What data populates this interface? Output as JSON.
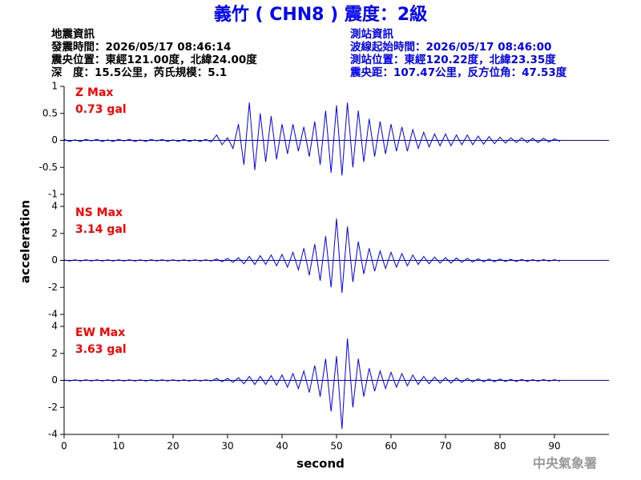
{
  "chart_data": {
    "type": "line",
    "title": "義竹 ( CHN8 ) 震度：2級",
    "header_left": [
      "地震資訊",
      "發震時間：2026/05/17 08:46:14",
      "震央位置：東經121.00度，北緯24.00度",
      "深　度：15.5公里，芮氏規模：5.1"
    ],
    "header_right": [
      "測站資訊",
      "波線起始時間：2026/05/17 08:46:00",
      "測站位置：東經120.22度，北緯23.35度",
      "震央距：107.47公里，反方位角：47.53度"
    ],
    "xlabel": "second",
    "ylabel": "acceleration",
    "credit": "中央氣象署",
    "xlim": [
      0,
      100
    ],
    "xticks": [
      0,
      10,
      20,
      30,
      40,
      50,
      60,
      70,
      80,
      90
    ],
    "x": [
      0,
      1,
      2,
      3,
      4,
      5,
      6,
      7,
      8,
      9,
      10,
      11,
      12,
      13,
      14,
      15,
      16,
      17,
      18,
      19,
      20,
      21,
      22,
      23,
      24,
      25,
      26,
      27,
      28,
      29,
      30,
      31,
      32,
      33,
      34,
      35,
      36,
      37,
      38,
      39,
      40,
      41,
      42,
      43,
      44,
      45,
      46,
      47,
      48,
      49,
      50,
      51,
      52,
      53,
      54,
      55,
      56,
      57,
      58,
      59,
      60,
      61,
      62,
      63,
      64,
      65,
      66,
      67,
      68,
      69,
      70,
      71,
      72,
      73,
      74,
      75,
      76,
      77,
      78,
      79,
      80,
      81,
      82,
      83,
      84,
      85,
      86,
      87,
      88,
      89,
      90,
      91
    ],
    "panels": [
      {
        "name": "Z Max",
        "max_label": "0.73 gal",
        "color": "#0000ff",
        "ylim": [
          -1,
          1
        ],
        "yticks": [
          -1,
          -0.5,
          0,
          0.5,
          1
        ],
        "values": [
          0.02,
          -0.02,
          0.01,
          -0.02,
          0.02,
          -0.01,
          0.02,
          -0.02,
          0.01,
          -0.02,
          0.02,
          -0.01,
          0.02,
          -0.02,
          0.01,
          -0.02,
          0.02,
          -0.01,
          0.02,
          -0.02,
          0.01,
          -0.02,
          0.02,
          -0.02,
          0.01,
          -0.02,
          0.02,
          -0.03,
          0.1,
          -0.08,
          0.05,
          -0.15,
          0.3,
          -0.45,
          0.7,
          -0.55,
          0.5,
          -0.4,
          0.45,
          -0.35,
          0.3,
          -0.25,
          0.3,
          -0.2,
          0.25,
          -0.3,
          0.35,
          -0.45,
          0.55,
          -0.6,
          0.65,
          -0.65,
          0.7,
          -0.5,
          0.55,
          -0.4,
          0.4,
          -0.3,
          0.35,
          -0.25,
          0.3,
          -0.2,
          0.25,
          -0.2,
          0.2,
          -0.15,
          0.15,
          -0.12,
          0.12,
          -0.1,
          0.12,
          -0.1,
          0.1,
          -0.08,
          0.1,
          -0.08,
          0.08,
          -0.07,
          0.07,
          -0.06,
          0.06,
          -0.05,
          0.05,
          -0.04,
          0.05,
          -0.04,
          0.04,
          -0.04,
          0.04,
          -0.03,
          0.03,
          -0.02
        ]
      },
      {
        "name": "NS Max",
        "max_label": "3.14 gal",
        "color": "#0000ff",
        "ylim": [
          -4,
          4
        ],
        "yticks": [
          -4,
          -2,
          0,
          2,
          4
        ],
        "values": [
          0.04,
          -0.04,
          0.04,
          -0.04,
          0.04,
          -0.04,
          0.04,
          -0.04,
          0.04,
          -0.04,
          0.04,
          -0.04,
          0.04,
          -0.04,
          0.04,
          -0.04,
          0.04,
          -0.04,
          0.04,
          -0.04,
          0.04,
          -0.04,
          0.04,
          -0.04,
          0.04,
          -0.04,
          0.04,
          -0.04,
          0.1,
          -0.1,
          0.15,
          -0.15,
          0.2,
          -0.25,
          0.3,
          -0.3,
          0.35,
          -0.3,
          0.4,
          -0.4,
          0.45,
          -0.5,
          0.6,
          -0.7,
          0.9,
          -1.1,
          1.2,
          -1.5,
          1.8,
          -2.0,
          3.1,
          -2.4,
          2.5,
          -1.6,
          1.4,
          -1.0,
          0.9,
          -0.8,
          0.7,
          -0.6,
          0.6,
          -0.5,
          0.5,
          -0.4,
          0.4,
          -0.3,
          0.3,
          -0.25,
          0.25,
          -0.2,
          0.2,
          -0.2,
          0.18,
          -0.15,
          0.15,
          -0.12,
          0.12,
          -0.1,
          0.1,
          -0.1,
          0.1,
          -0.08,
          0.08,
          -0.08,
          0.07,
          -0.07,
          0.06,
          -0.06,
          0.06,
          -0.05,
          0.05,
          -0.05
        ]
      },
      {
        "name": "EW Max",
        "max_label": "3.63 gal",
        "color": "#0000ff",
        "ylim": [
          -4,
          4
        ],
        "yticks": [
          -4,
          -2,
          0,
          2,
          4
        ],
        "values": [
          0.04,
          -0.04,
          0.04,
          -0.04,
          0.04,
          -0.04,
          0.04,
          -0.04,
          0.04,
          -0.04,
          0.04,
          -0.04,
          0.04,
          -0.04,
          0.04,
          -0.04,
          0.04,
          -0.04,
          0.04,
          -0.04,
          0.04,
          -0.04,
          0.04,
          -0.04,
          0.04,
          -0.04,
          0.04,
          -0.04,
          0.15,
          -0.1,
          0.15,
          -0.15,
          0.2,
          -0.25,
          0.3,
          -0.3,
          0.3,
          -0.3,
          0.35,
          -0.35,
          0.4,
          -0.5,
          0.5,
          -0.6,
          0.7,
          -0.9,
          1.1,
          -1.2,
          1.6,
          -2.3,
          1.8,
          -3.6,
          3.1,
          -2.0,
          1.6,
          -1.2,
          0.9,
          -0.8,
          0.7,
          -0.6,
          0.6,
          -0.5,
          0.5,
          -0.4,
          0.4,
          -0.3,
          0.3,
          -0.25,
          0.25,
          -0.2,
          0.2,
          -0.2,
          0.18,
          -0.15,
          0.15,
          -0.12,
          0.12,
          -0.1,
          0.1,
          -0.1,
          0.1,
          -0.08,
          0.08,
          -0.08,
          0.07,
          -0.07,
          0.06,
          -0.06,
          0.06,
          -0.05,
          0.05,
          -0.05
        ]
      }
    ]
  }
}
